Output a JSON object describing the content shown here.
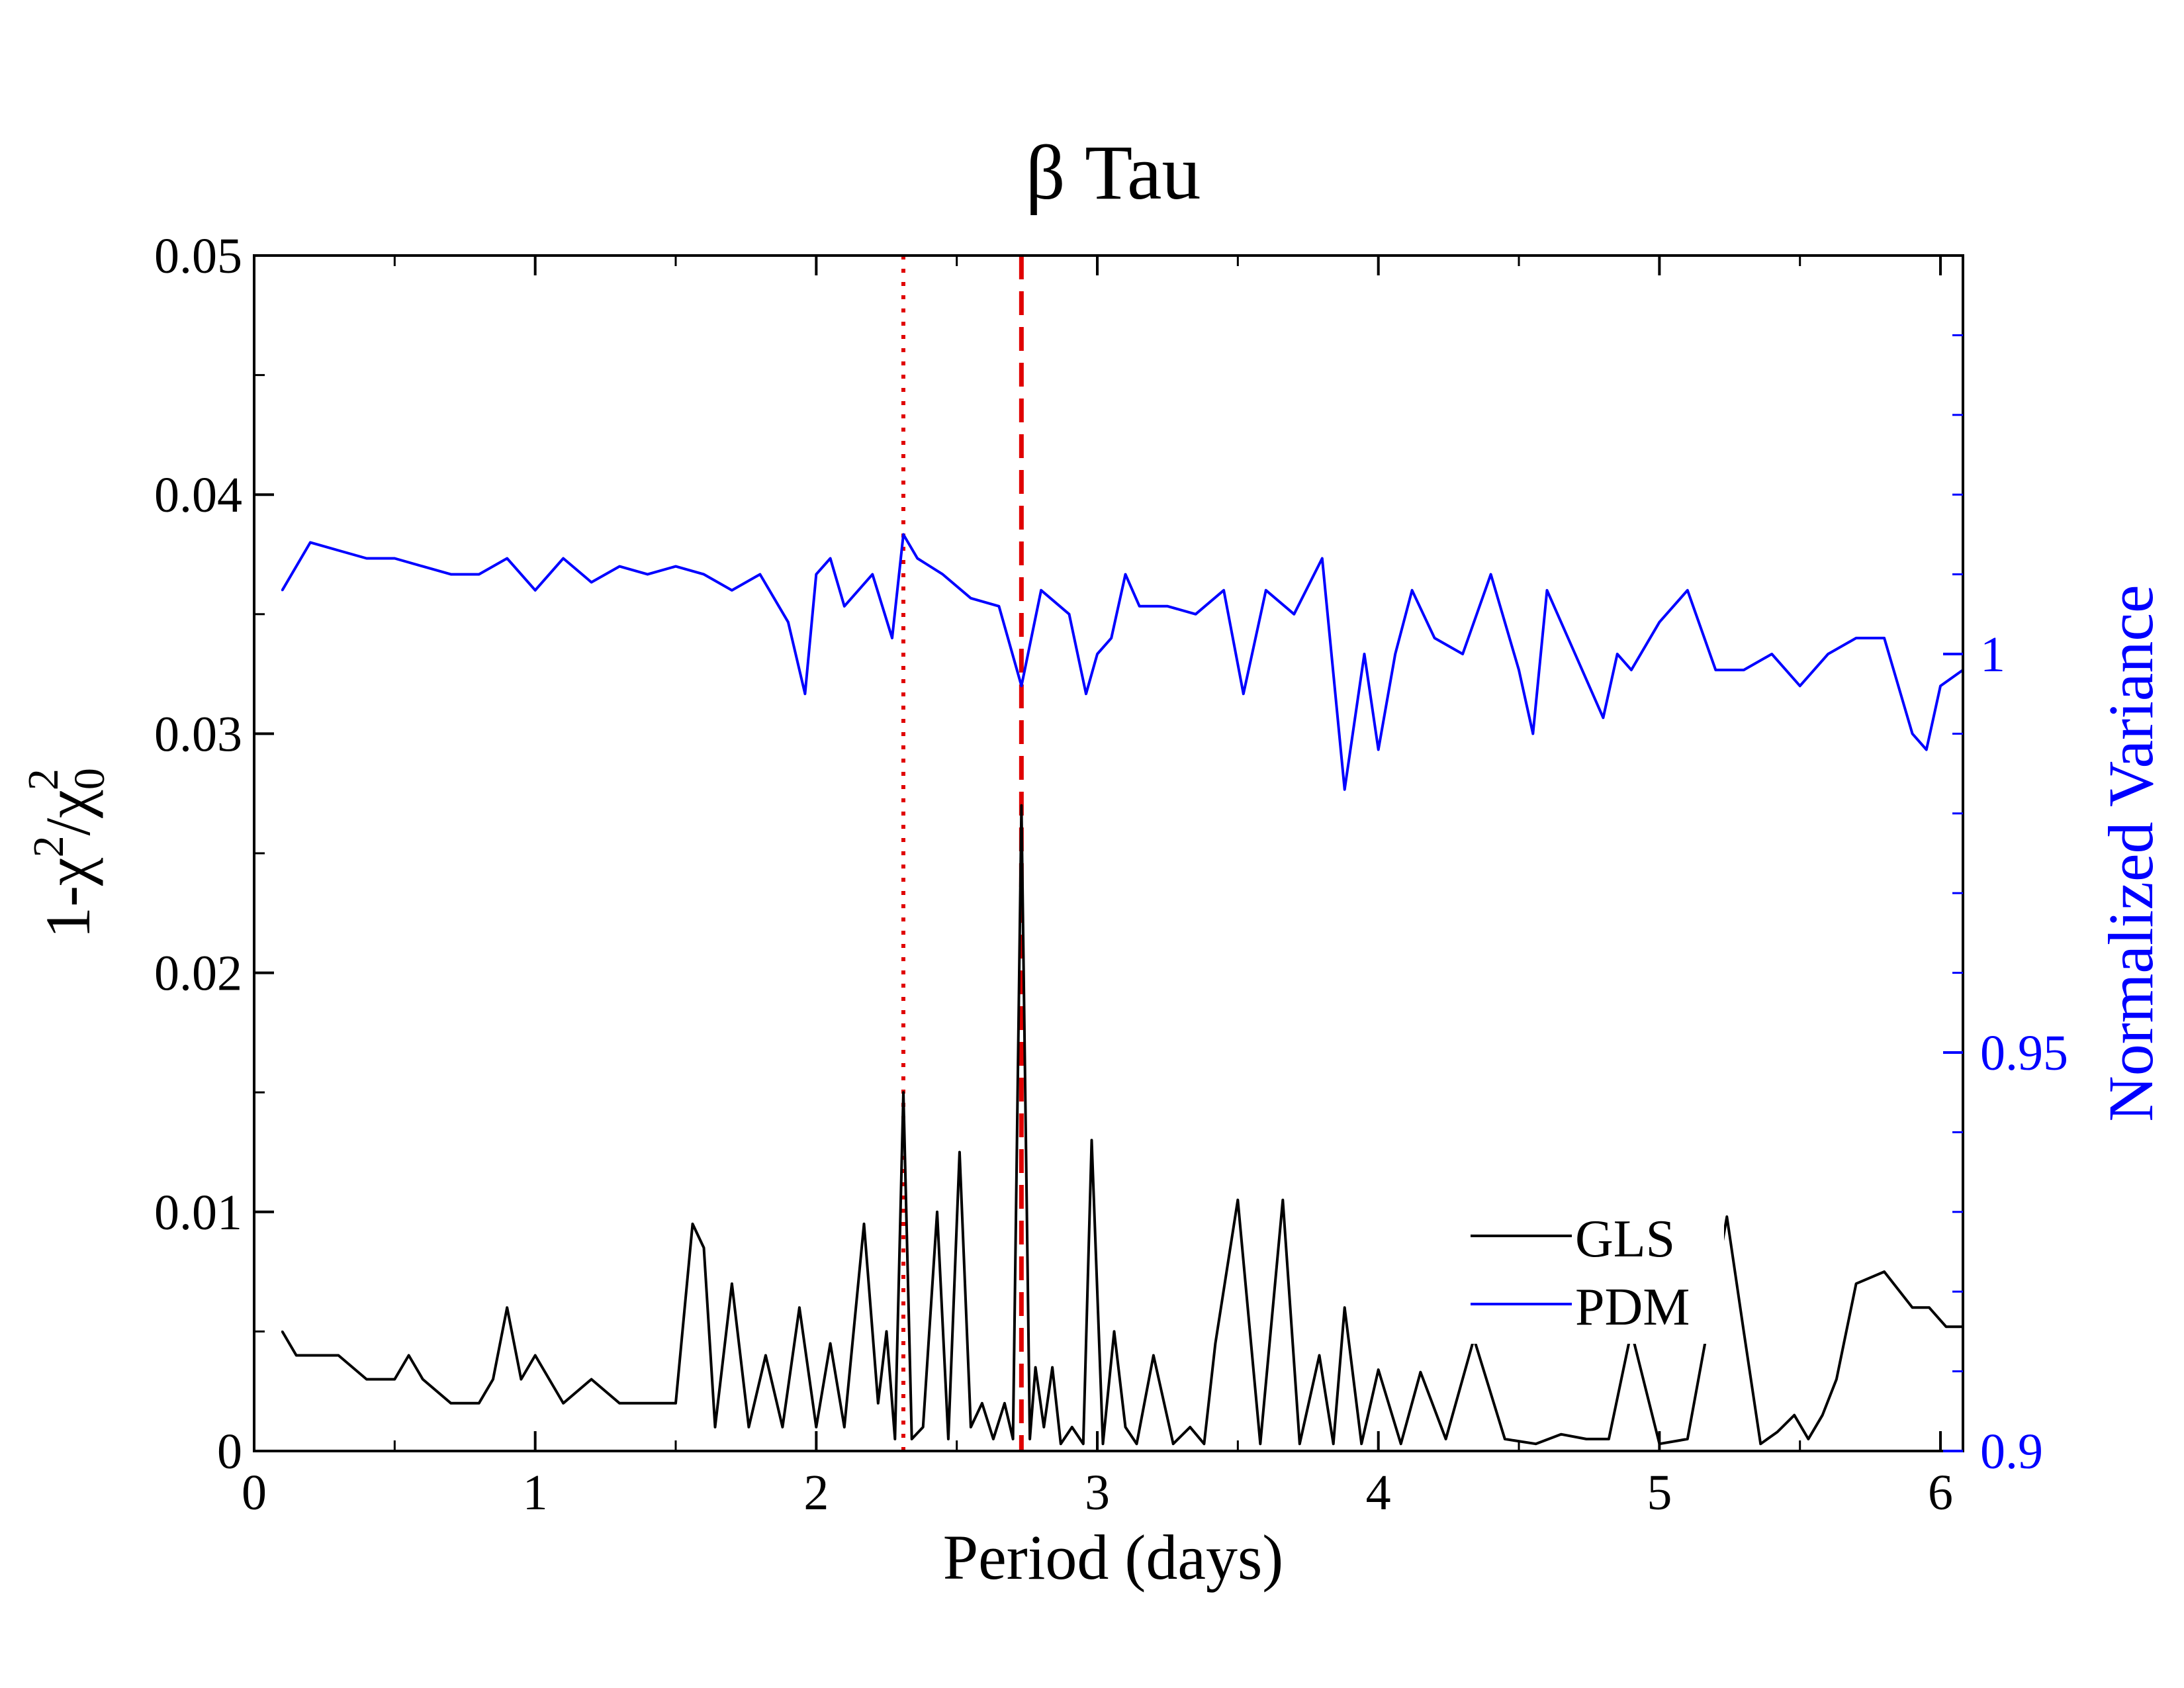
{
  "chart_data": {
    "type": "line",
    "title": "β Tau",
    "xlabel": "Period (days)",
    "ylabel": {
      "base": "1-χ",
      "sup1": "2",
      "mid": "/χ",
      "sub": "0",
      "sup2": "2"
    },
    "y2label": "Normalized Variance",
    "xlim": [
      0,
      6.08
    ],
    "ylim": [
      0,
      0.05
    ],
    "y2lim": [
      0.9,
      1.05
    ],
    "x_ticks": [
      "0",
      "1",
      "2",
      "3",
      "4",
      "5",
      "6"
    ],
    "y_ticks": [
      "0",
      "0.01",
      "0.02",
      "0.03",
      "0.04",
      "0.05"
    ],
    "y2_ticks": [
      "0.9",
      "0.95",
      "1"
    ],
    "grid": false,
    "legend_position": "lower-right",
    "colors": {
      "gls": "#000000",
      "pdm": "#0000ff",
      "markers": "#e00000"
    },
    "markers": [
      {
        "x": 2.31,
        "style": "dotted"
      },
      {
        "x": 2.73,
        "style": "dashed"
      }
    ],
    "series": [
      {
        "name": "GLS",
        "axis": "left",
        "color": "#000000",
        "x": [
          0.1,
          0.15,
          0.2,
          0.3,
          0.4,
          0.5,
          0.55,
          0.6,
          0.7,
          0.8,
          0.85,
          0.9,
          0.95,
          1.0,
          1.1,
          1.2,
          1.3,
          1.4,
          1.5,
          1.56,
          1.6,
          1.64,
          1.7,
          1.76,
          1.82,
          1.88,
          1.94,
          2.0,
          2.05,
          2.1,
          2.17,
          2.22,
          2.25,
          2.28,
          2.31,
          2.34,
          2.38,
          2.43,
          2.47,
          2.51,
          2.55,
          2.59,
          2.63,
          2.67,
          2.7,
          2.73,
          2.76,
          2.78,
          2.81,
          2.84,
          2.87,
          2.91,
          2.95,
          2.98,
          3.02,
          3.06,
          3.1,
          3.14,
          3.2,
          3.27,
          3.33,
          3.38,
          3.42,
          3.5,
          3.58,
          3.66,
          3.72,
          3.79,
          3.84,
          3.88,
          3.94,
          4.0,
          4.08,
          4.15,
          4.24,
          4.34,
          4.45,
          4.56,
          4.65,
          4.74,
          4.82,
          4.9,
          5.0,
          5.1,
          5.17,
          5.24,
          5.3,
          5.36,
          5.42,
          5.48,
          5.53,
          5.58,
          5.63,
          5.7,
          5.8,
          5.9,
          5.96,
          6.02,
          6.08
        ],
        "values": [
          0.005,
          0.004,
          0.004,
          0.004,
          0.003,
          0.003,
          0.004,
          0.003,
          0.002,
          0.002,
          0.003,
          0.006,
          0.003,
          0.004,
          0.002,
          0.003,
          0.002,
          0.002,
          0.002,
          0.0095,
          0.0085,
          0.001,
          0.007,
          0.001,
          0.004,
          0.001,
          0.006,
          0.001,
          0.0045,
          0.001,
          0.0095,
          0.002,
          0.005,
          0.0005,
          0.015,
          0.0005,
          0.001,
          0.01,
          0.0005,
          0.0125,
          0.001,
          0.002,
          0.0005,
          0.002,
          0.0005,
          0.027,
          0.0005,
          0.0035,
          0.001,
          0.0035,
          0.0003,
          0.001,
          0.0003,
          0.013,
          0.0003,
          0.005,
          0.001,
          0.0003,
          0.004,
          0.0003,
          0.001,
          0.0003,
          0.0045,
          0.0105,
          0.0003,
          0.0105,
          0.0003,
          0.004,
          0.0003,
          0.006,
          0.0003,
          0.0034,
          0.0003,
          0.0033,
          0.0005,
          0.0047,
          0.0005,
          0.0003,
          0.0007,
          0.0005,
          0.0005,
          0.005,
          0.0003,
          0.0005,
          0.005,
          0.0098,
          0.005,
          0.0003,
          0.0008,
          0.0015,
          0.0005,
          0.0015,
          0.003,
          0.007,
          0.0075,
          0.006,
          0.006,
          0.0052,
          0.0052
        ]
      },
      {
        "name": "PDM",
        "axis": "right",
        "color": "#0000ff",
        "x": [
          0.1,
          0.2,
          0.3,
          0.4,
          0.5,
          0.6,
          0.7,
          0.8,
          0.9,
          1.0,
          1.1,
          1.2,
          1.3,
          1.4,
          1.5,
          1.6,
          1.7,
          1.8,
          1.9,
          1.96,
          2.0,
          2.05,
          2.1,
          2.2,
          2.27,
          2.31,
          2.36,
          2.45,
          2.55,
          2.65,
          2.73,
          2.8,
          2.9,
          2.96,
          3.0,
          3.05,
          3.1,
          3.15,
          3.25,
          3.35,
          3.45,
          3.52,
          3.6,
          3.7,
          3.8,
          3.88,
          3.95,
          4.0,
          4.06,
          4.12,
          4.2,
          4.3,
          4.4,
          4.5,
          4.55,
          4.6,
          4.7,
          4.8,
          4.85,
          4.9,
          5.0,
          5.1,
          5.2,
          5.3,
          5.4,
          5.5,
          5.6,
          5.7,
          5.8,
          5.9,
          5.95,
          6.0,
          6.08
        ],
        "values": [
          1.008,
          1.014,
          1.013,
          1.012,
          1.012,
          1.011,
          1.01,
          1.01,
          1.012,
          1.008,
          1.012,
          1.009,
          1.011,
          1.01,
          1.011,
          1.01,
          1.008,
          1.01,
          1.004,
          0.995,
          1.01,
          1.012,
          1.006,
          1.01,
          1.002,
          1.015,
          1.012,
          1.01,
          1.007,
          1.006,
          0.996,
          1.008,
          1.005,
          0.995,
          1.0,
          1.002,
          1.01,
          1.006,
          1.006,
          1.005,
          1.008,
          0.995,
          1.008,
          1.005,
          1.012,
          0.983,
          1.0,
          0.988,
          1.0,
          1.008,
          1.002,
          1.0,
          1.01,
          0.998,
          0.99,
          1.008,
          1.0,
          0.992,
          1.0,
          0.998,
          1.004,
          1.008,
          0.998,
          0.998,
          1.0,
          0.996,
          1.0,
          1.002,
          1.002,
          0.99,
          0.988,
          0.996,
          0.998
        ]
      }
    ]
  }
}
